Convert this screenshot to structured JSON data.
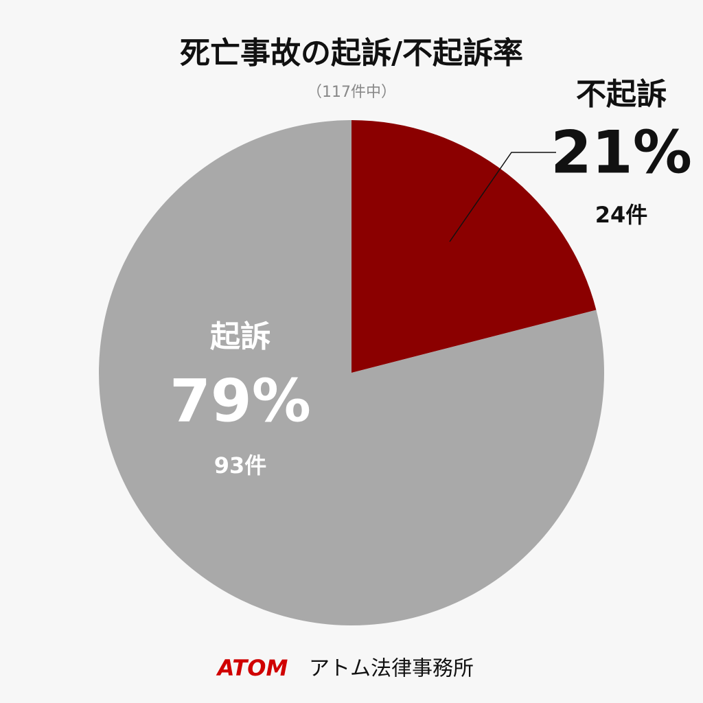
{
  "chart_data": {
    "type": "pie",
    "title": "死亡事故の起訴/不起訴率",
    "subtitle": "（117件中）",
    "categories": [
      "不起訴",
      "起訴"
    ],
    "values": [
      21,
      79
    ],
    "value_labels": [
      "21%",
      "79%"
    ],
    "count_labels": [
      "24件",
      "93件"
    ],
    "colors": [
      "#8b0000",
      "#a9a9a9"
    ]
  },
  "footer": {
    "brand": "ATOM",
    "name": "アトム法律事務所"
  }
}
